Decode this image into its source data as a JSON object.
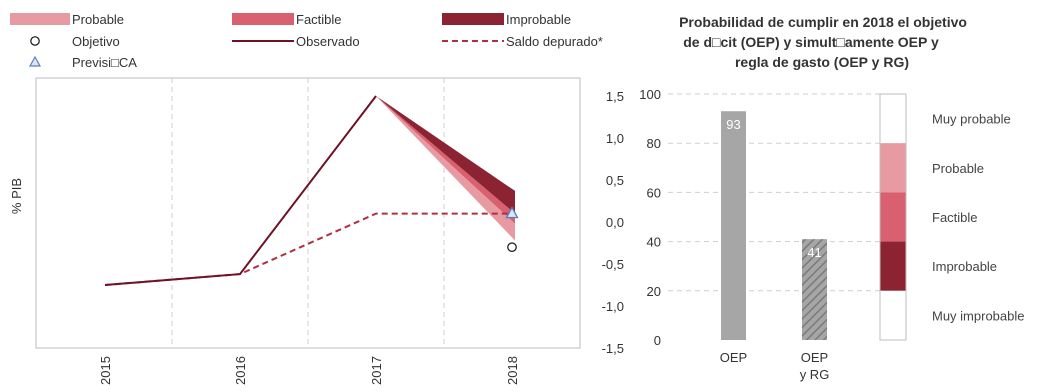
{
  "colors": {
    "probable": "#e89aa2",
    "factible": "#d9606e",
    "improbable": "#8b2332",
    "observado": "#6e1226",
    "saldo": "#b03040",
    "prevision": "#5b7fbf",
    "bar": "#a6a6a6",
    "grid": "#cfcfcf"
  },
  "legend": {
    "probable": "Probable",
    "factible": "Factible",
    "improbable": "Improbable",
    "objetivo": "Objetivo",
    "observado": "Observado",
    "saldo": "Saldo depurado*",
    "prevision": "Previsi□CA"
  },
  "chart_data": [
    {
      "type": "line",
      "ylabel": "% PIB",
      "x": [
        "2015",
        "2016",
        "2017",
        "2018"
      ],
      "ylim": [
        -1.5,
        1.5
      ],
      "yticks": [
        "1,5",
        "1,0",
        "0,5",
        "0,0",
        "-0,5",
        "-1,0",
        "-1,5"
      ],
      "yticks_values": [
        1.5,
        1.0,
        0.5,
        0.0,
        -0.5,
        -1.0,
        -1.5
      ],
      "series": [
        {
          "name": "Observado",
          "values": [
            -0.75,
            -0.62,
            1.5,
            null
          ]
        },
        {
          "name": "Saldo depurado*",
          "values": [
            -0.75,
            -0.62,
            0.1,
            0.1
          ]
        }
      ],
      "fan": {
        "from": {
          "x": "2017",
          "y": 1.5
        },
        "at_2018": {
          "improbable": [
            0.1,
            0.37
          ],
          "factible": [
            -0.02,
            0.1
          ],
          "probable": [
            -0.22,
            -0.02
          ]
        }
      },
      "objetivo": {
        "x": "2018",
        "y": -0.3
      },
      "prevision_ca": {
        "x": "2018",
        "y": 0.1
      }
    },
    {
      "type": "bar",
      "title": "Probabilidad de cumplir en 2018 el objetivo de d□cit (OEP) y simult□amente OEP y regla de gasto (OEP y RG)",
      "title_lines": [
        "Probabilidad de cumplir en 2018 el objetivo",
        "de d□cit (OEP) y simult□amente  OEP y",
        "regla de gasto (OEP y RG)"
      ],
      "categories": [
        "OEP",
        "OEP y RG"
      ],
      "category_lines": [
        [
          "OEP"
        ],
        [
          "OEP",
          "y RG"
        ]
      ],
      "values": [
        93,
        41
      ],
      "labels": [
        "93",
        "41"
      ],
      "ylim": [
        0,
        100
      ],
      "yticks": [
        0,
        20,
        40,
        60,
        80,
        100
      ],
      "zones": [
        {
          "label": "Muy probable",
          "from": 80,
          "to": 100
        },
        {
          "label": "Probable",
          "from": 60,
          "to": 80
        },
        {
          "label": "Factible",
          "from": 40,
          "to": 60
        },
        {
          "label": "Improbable",
          "from": 20,
          "to": 40
        },
        {
          "label": "Muy improbable",
          "from": 0,
          "to": 20
        }
      ]
    }
  ]
}
